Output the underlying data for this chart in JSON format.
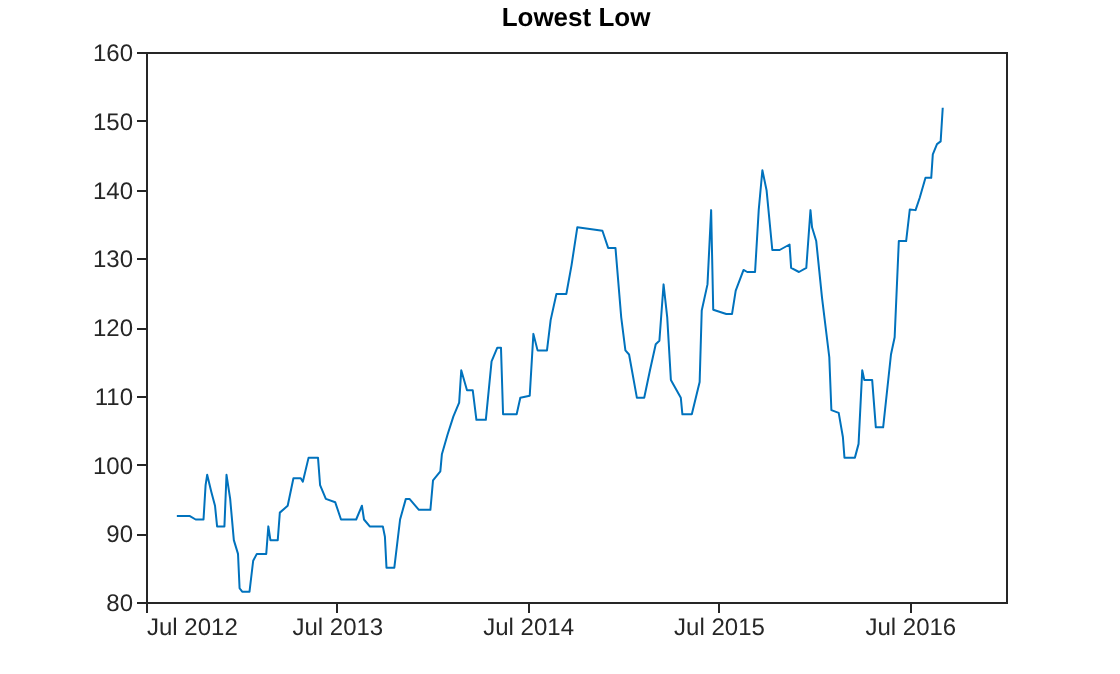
{
  "chart_data": {
    "type": "line",
    "title": "Lowest Low",
    "x": [
      "2012-08-29",
      "2012-09-23",
      "2012-10-04",
      "2012-10-19",
      "2012-10-23",
      "2012-10-26",
      "2012-11-03",
      "2012-11-10",
      "2012-11-14",
      "2012-11-28",
      "2012-12-02",
      "2012-12-09",
      "2012-12-16",
      "2012-12-24",
      "2012-12-27",
      "2013-01-01",
      "2013-01-15",
      "2013-01-22",
      "2013-01-29",
      "2013-02-16",
      "2013-02-20",
      "2013-02-24",
      "2013-03-10",
      "2013-03-14",
      "2013-03-29",
      "2013-04-09",
      "2013-04-23",
      "2013-04-27",
      "2013-05-08",
      "2013-05-26",
      "2013-05-30",
      "2013-06-10",
      "2013-06-28",
      "2013-07-09",
      "2013-08-07",
      "2013-08-18",
      "2013-08-22",
      "2013-09-02",
      "2013-09-27",
      "2013-10-01",
      "2013-10-04",
      "2013-10-19",
      "2013-10-30",
      "2013-11-10",
      "2013-11-17",
      "2013-12-05",
      "2013-12-27",
      "2014-01-01",
      "2014-01-15",
      "2014-01-18",
      "2014-01-29",
      "2014-02-09",
      "2014-02-20",
      "2014-02-24",
      "2014-03-07",
      "2014-03-18",
      "2014-03-25",
      "2014-04-12",
      "2014-04-23",
      "2014-05-04",
      "2014-05-11",
      "2014-05-15",
      "2014-06-10",
      "2014-06-17",
      "2014-07-05",
      "2014-07-12",
      "2014-07-20",
      "2014-08-07",
      "2014-08-14",
      "2014-08-25",
      "2014-09-13",
      "2014-09-23",
      "2014-10-04",
      "2014-11-21",
      "2014-12-02",
      "2014-12-16",
      "2014-12-27",
      "2015-01-04",
      "2015-01-11",
      "2015-01-26",
      "2015-02-09",
      "2015-02-20",
      "2015-03-03",
      "2015-03-10",
      "2015-03-18",
      "2015-03-25",
      "2015-04-01",
      "2015-04-20",
      "2015-04-23",
      "2015-05-11",
      "2015-05-26",
      "2015-05-30",
      "2015-06-10",
      "2015-06-17",
      "2015-06-21",
      "2015-07-16",
      "2015-07-27",
      "2015-08-03",
      "2015-08-18",
      "2015-08-25",
      "2015-09-09",
      "2015-09-16",
      "2015-09-23",
      "2015-10-01",
      "2015-10-12",
      "2015-10-26",
      "2015-11-14",
      "2015-11-17",
      "2015-12-02",
      "2015-12-16",
      "2015-12-24",
      "2015-12-27",
      "2016-01-04",
      "2016-01-15",
      "2016-01-29",
      "2016-02-02",
      "2016-02-16",
      "2016-02-24",
      "2016-02-27",
      "2016-03-18",
      "2016-03-25",
      "2016-04-01",
      "2016-04-05",
      "2016-04-20",
      "2016-04-27",
      "2016-05-11",
      "2016-05-26",
      "2016-06-02",
      "2016-06-10",
      "2016-06-24",
      "2016-07-01",
      "2016-07-12",
      "2016-07-20",
      "2016-07-31",
      "2016-08-11",
      "2016-08-14",
      "2016-08-22",
      "2016-08-29",
      "2016-09-02"
    ],
    "series": [
      {
        "color": "#0072bd",
        "values": [
          92.5,
          92.5,
          92,
          92,
          97,
          98.5,
          96,
          94,
          91,
          91,
          98.5,
          95,
          89,
          87,
          82,
          81.5,
          81.5,
          86,
          87,
          87,
          91,
          89,
          89,
          93,
          94,
          98,
          98,
          97.5,
          101,
          101,
          97,
          95,
          94.5,
          92,
          92,
          94,
          92,
          91,
          91,
          89.5,
          85,
          85,
          92,
          95,
          95,
          93.4,
          93.4,
          97.7,
          99,
          101.5,
          104.4,
          107,
          109,
          113.7,
          110.8,
          110.8,
          106.5,
          106.5,
          115,
          117,
          117,
          107.3,
          107.3,
          109.7,
          110,
          119,
          116.6,
          116.6,
          121,
          124.8,
          124.8,
          129,
          134.5,
          134,
          131.5,
          131.5,
          121.4,
          116.6,
          116,
          109.7,
          109.7,
          113.7,
          117.5,
          118,
          126.2,
          121.4,
          112.3,
          109.7,
          107.3,
          107.3,
          112,
          122.4,
          126.2,
          137,
          122.5,
          121.9,
          121.9,
          125.3,
          128.3,
          128,
          128,
          137,
          142.8,
          139.9,
          131.2,
          131.2,
          132,
          128.6,
          128,
          128.6,
          137,
          134.5,
          132.5,
          124.3,
          115.6,
          107.9,
          107.5,
          104,
          101,
          101,
          103,
          113.7,
          112.3,
          112.3,
          105.4,
          105.4,
          116,
          118.5,
          132.5,
          132.5,
          137.1,
          137,
          138.8,
          141.7,
          141.7,
          145.1,
          146.6,
          147,
          151.9
        ]
      }
    ],
    "xlim": [
      "2012-07-01",
      "2017-01-01"
    ],
    "xticks": [
      {
        "value": "2012-07-01",
        "label": "Jul 2012"
      },
      {
        "value": "2013-07-01",
        "label": "Jul 2013"
      },
      {
        "value": "2014-07-01",
        "label": "Jul 2014"
      },
      {
        "value": "2015-07-01",
        "label": "Jul 2015"
      },
      {
        "value": "2016-07-01",
        "label": "Jul 2016"
      }
    ],
    "ylim": [
      80,
      160
    ],
    "yticks": [
      80,
      90,
      100,
      110,
      120,
      130,
      140,
      150,
      160
    ],
    "marker": "none",
    "line_style": "solid",
    "grid": false,
    "legend": false
  }
}
